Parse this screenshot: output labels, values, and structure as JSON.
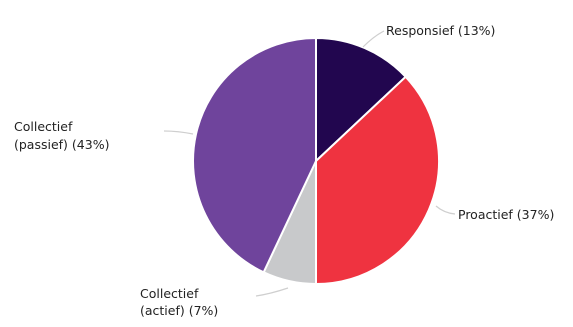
{
  "chart_data": {
    "type": "pie",
    "title": "",
    "slices": [
      {
        "label": "Responsief",
        "value": 13,
        "color": "#22064f"
      },
      {
        "label": "Proactief",
        "value": 37,
        "color": "#ef3340"
      },
      {
        "label": "Collectief (actief)",
        "value": 7,
        "color": "#c8c9cb"
      },
      {
        "label": "Collectief (passief)",
        "value": 43,
        "color": "#6f449c"
      }
    ],
    "labels": {
      "responsief": "Responsief (13%)",
      "proactief": "Proactief (37%)",
      "actief_line1": "Collectief",
      "actief_line2": "(actief) (7%)",
      "passief_line1": "Collectief",
      "passief_line2": "(passief) (43%)"
    }
  }
}
